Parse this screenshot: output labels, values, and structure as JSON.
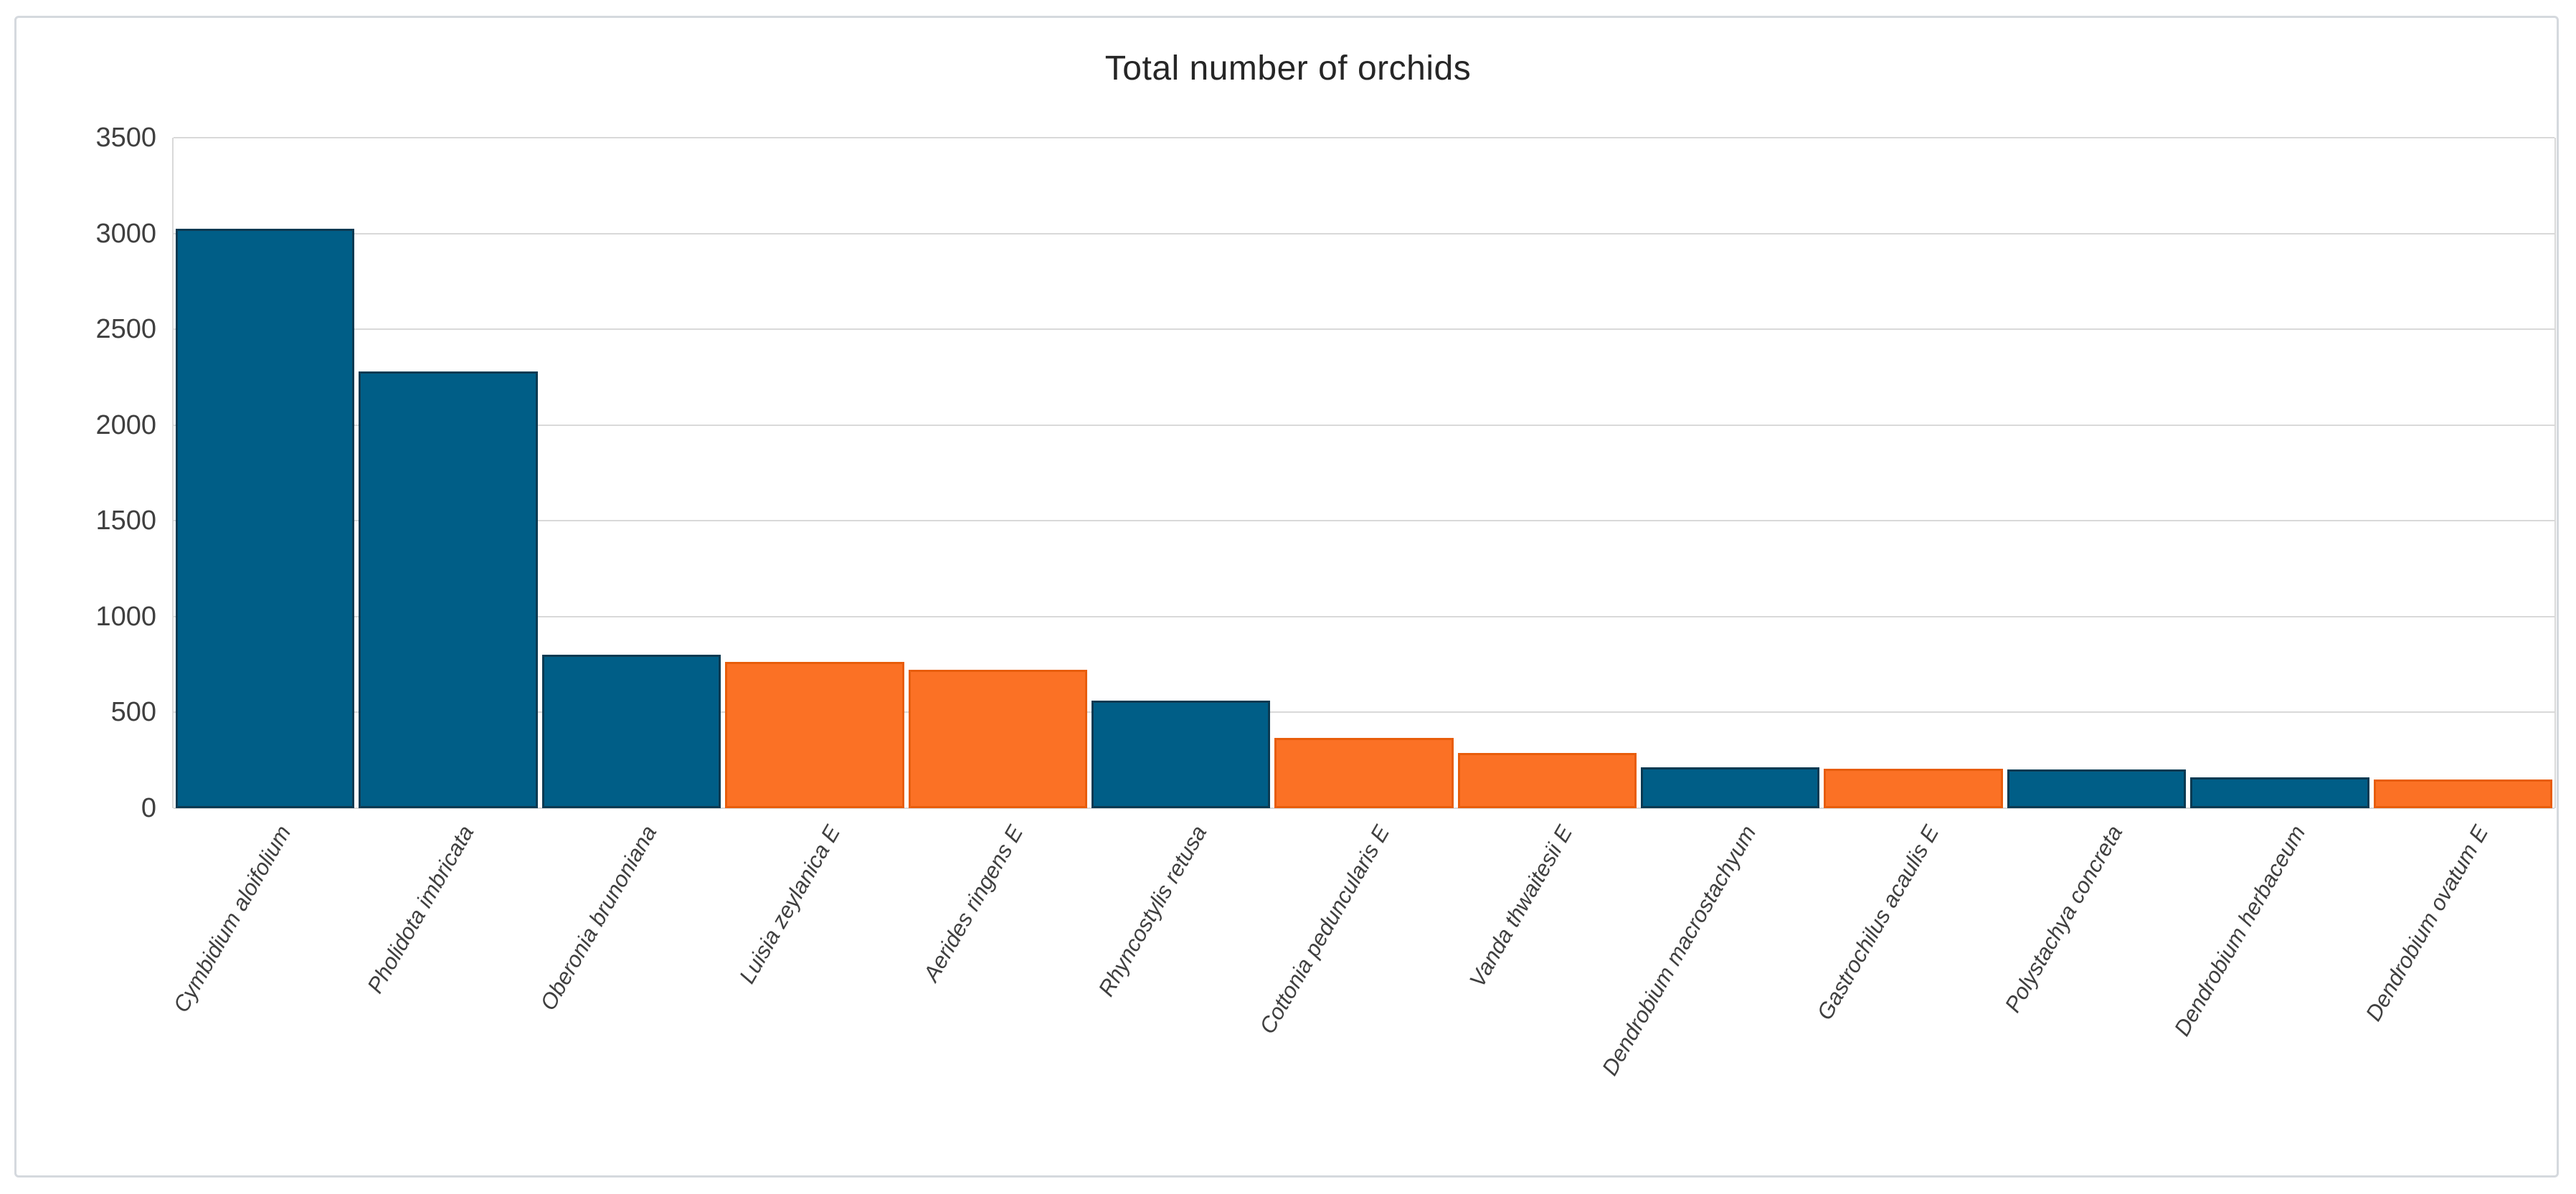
{
  "title": "Total number of orchids",
  "chart_data": {
    "type": "bar",
    "title": "Total number of orchids",
    "categories": [
      "Cymbidium aloifolium",
      "Pholidota imbricata",
      "Oberonia brunoniana",
      "Luisia zeylanica E",
      "Aerides ringens E",
      "Rhyncostylis retusa",
      "Cottonia peduncularis E",
      "Vanda thwaitesii E",
      "Dendrobium macrostachyum",
      "Gastrochilus acaulis E",
      "Polystachya concreta",
      "Dendrobium herbaceum",
      "Dendrobium ovatum E"
    ],
    "values": [
      3025,
      2281,
      800,
      763,
      724,
      560,
      366,
      287,
      212,
      207,
      202,
      160,
      148
    ],
    "bar_color_keys": [
      "blue",
      "blue",
      "blue",
      "orange",
      "orange",
      "blue",
      "orange",
      "orange",
      "blue",
      "orange",
      "blue",
      "blue",
      "orange"
    ],
    "colors": {
      "blue": "#005e87",
      "orange": "#fb7125",
      "blue_border": "#0b3a52",
      "orange_border": "#e85d0b",
      "gridline": "#d9d9d9",
      "title_text": "#262626",
      "axis_text": "#3f3f3f"
    },
    "xlabel": "",
    "ylabel": "",
    "ylim": [
      0,
      3500
    ],
    "ytick_interval": 500,
    "ytick_labels": [
      "0",
      "500",
      "1000",
      "1500",
      "2000",
      "2500",
      "3000",
      "3500"
    ],
    "grid": true,
    "legend_position": "none"
  }
}
